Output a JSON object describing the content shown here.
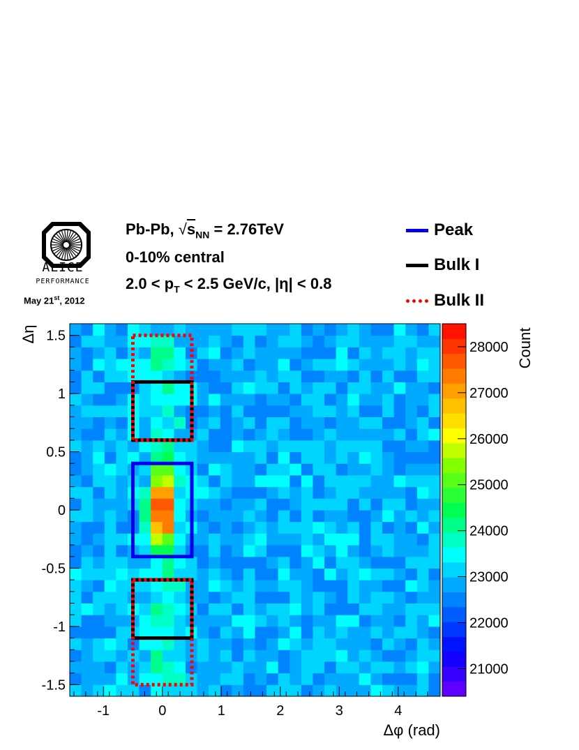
{
  "header": {
    "logo_word": "ALICE",
    "logo_sub": "PERFORMANCE",
    "date": "May 21",
    "date_sup": "st",
    "date_year": ", 2012",
    "system_prefix": "Pb-Pb,",
    "system_sqrt": "√",
    "system_s": "s",
    "system_sub": "NN",
    "system_energy": "= 2.76TeV",
    "centrality": "0-10% central",
    "pt_part1": "2.0 < p",
    "pt_sub": "T",
    "pt_part2": "< 2.5 GeV/c, |η| < 0.8"
  },
  "colors": {
    "peak": "#0000ee",
    "bulk1": "#000000",
    "bulk2": "#ff0000"
  },
  "chart_data": {
    "type": "heatmap",
    "xlabel": "Δφ (rad)",
    "ylabel": "Δη",
    "zlabel": "Count",
    "xlim": [
      -1.5708,
      4.7124
    ],
    "ylim": [
      -1.6,
      1.6
    ],
    "zlim": [
      20400,
      28500
    ],
    "x_ticks": [
      -1,
      0,
      1,
      2,
      3,
      4
    ],
    "y_ticks": [
      -1.5,
      -1,
      -0.5,
      0,
      0.5,
      1,
      1.5
    ],
    "z_ticks": [
      21000,
      22000,
      23000,
      24000,
      25000,
      26000,
      27000,
      28000
    ],
    "nx": 32,
    "ny": 32,
    "base_level": 22900,
    "peak_amplitude": 5500,
    "peak_center": [
      0,
      0
    ],
    "peak_width": [
      0.13,
      0.2
    ],
    "ridge_amplitude": 900,
    "ridge_width": 0.22,
    "noise": 500,
    "legend": [
      {
        "label": "Peak",
        "style": "solid",
        "color": "#0000ee"
      },
      {
        "label": "Bulk I",
        "style": "solid",
        "color": "#000000"
      },
      {
        "label": "Bulk II",
        "style": "dotted",
        "color": "#ff0000"
      }
    ],
    "regions": [
      {
        "name": "Peak",
        "style": "solid",
        "color": "#0000ee",
        "x": [
          -0.5,
          0.5
        ],
        "y": [
          -0.4,
          0.4
        ]
      },
      {
        "name": "Bulk I",
        "style": "solid",
        "color": "#000000",
        "x": [
          -0.5,
          0.5
        ],
        "y": [
          -1.1,
          -0.6
        ]
      },
      {
        "name": "Bulk I",
        "style": "solid",
        "color": "#000000",
        "x": [
          -0.5,
          0.5
        ],
        "y": [
          0.6,
          1.1
        ]
      },
      {
        "name": "Bulk II",
        "style": "dotted",
        "color": "#ff0000",
        "x": [
          -0.5,
          0.5
        ],
        "y": [
          -1.5,
          -0.6
        ]
      },
      {
        "name": "Bulk II",
        "style": "dotted",
        "color": "#ff0000",
        "x": [
          -0.5,
          0.5
        ],
        "y": [
          0.6,
          1.5
        ]
      }
    ]
  }
}
